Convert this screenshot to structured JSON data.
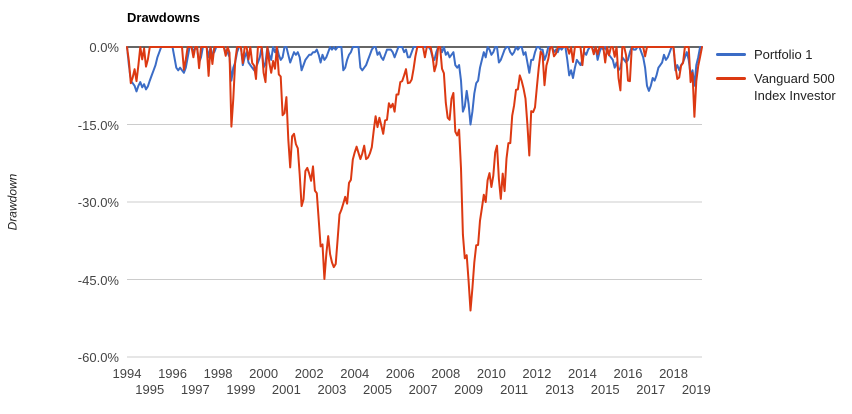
{
  "chart_data": {
    "type": "line",
    "title": "Drawdowns",
    "xlabel": "",
    "ylabel": "Drawdown",
    "x_start": "1994-01",
    "x_end": "2019-04",
    "x_frequency": "monthly",
    "ylim": [
      -60,
      0
    ],
    "y_ticks": [
      0,
      -15,
      -30,
      -45,
      -60
    ],
    "y_tick_labels": [
      "0.0%",
      "-15.0%",
      "-30.0%",
      "-45.0%",
      "-60.0%"
    ],
    "x_tick_years": [
      1994,
      1995,
      1996,
      1997,
      1998,
      1999,
      2000,
      2001,
      2002,
      2003,
      2004,
      2005,
      2006,
      2007,
      2008,
      2009,
      2010,
      2011,
      2012,
      2013,
      2014,
      2015,
      2016,
      2017,
      2018,
      2019
    ],
    "grid": "horizontal",
    "legend_position": "right",
    "series": [
      {
        "name": "Portfolio 1",
        "color": "#3B6CC6",
        "values": [
          0,
          -3.5,
          -6.5,
          -7.0,
          -7.5,
          -8.6,
          -7.5,
          -6.8,
          -7.8,
          -7.2,
          -8.2,
          -7.6,
          -6.5,
          -5.5,
          -4.5,
          -3.5,
          -2.0,
          -1.0,
          0,
          0,
          0,
          0,
          0,
          0,
          0,
          -2.0,
          -4.0,
          -4.5,
          -4.0,
          -4.5,
          -5.0,
          -4.0,
          -2.0,
          0,
          0,
          -1.0,
          0,
          -0.5,
          -3.0,
          -2.0,
          0,
          0,
          0,
          -2.0,
          0,
          -1.5,
          -1.0,
          0,
          0,
          0,
          0,
          0,
          -1.0,
          -1.0,
          -2.0,
          -6.5,
          -4.0,
          -3.0,
          -1.0,
          0,
          0,
          -3.5,
          -2.0,
          -1.0,
          -3.0,
          -3.5,
          -4.0,
          -4.5,
          -4.0,
          -3.0,
          -2.0,
          0,
          -4.0,
          -3.0,
          0,
          -1.5,
          -2.5,
          0,
          -1.0,
          0,
          -1.5,
          -2.5,
          -2.0,
          0,
          0,
          -1.5,
          -3.0,
          -2.0,
          -1.0,
          -1.5,
          -1.0,
          -2.0,
          -4.5,
          -3.5,
          -2.5,
          -2.0,
          -1.5,
          -1.5,
          -1.0,
          -1.0,
          -0.5,
          -1.5,
          -3.0,
          -1.5,
          -2.5,
          -2.0,
          -1.0,
          0,
          -0.5,
          0,
          -0.5,
          0,
          0,
          0,
          -4.5,
          -4.0,
          -2.5,
          -1.5,
          -1.0,
          0,
          0,
          0,
          0,
          -4.0,
          -4.5,
          -4.0,
          -3.5,
          -2.5,
          -1.5,
          -0.5,
          0,
          0,
          -1.5,
          -1.0,
          -2.0,
          -2.5,
          -1.5,
          -0.5,
          -0.5,
          -0.5,
          -1.0,
          -2.0,
          -1.0,
          0,
          0,
          0,
          -1.0,
          -0.5,
          -2.0,
          -2.0,
          -1.0,
          0,
          0,
          0,
          0,
          0,
          0,
          0,
          0,
          0,
          -0.5,
          -2.0,
          -2.5,
          -1.0,
          0,
          0,
          -1.0,
          0,
          -1.5,
          -1.0,
          -2.0,
          -1.5,
          -1.0,
          -3.5,
          -4.0,
          -3.5,
          -6.5,
          -12.5,
          -11.5,
          -8.5,
          -11.0,
          -15.0,
          -12.5,
          -9.0,
          -7.0,
          -6.5,
          -4.0,
          -2.5,
          -1.0,
          -2.0,
          0,
          -0.5,
          -1.5,
          -1.0,
          0,
          0,
          -3.0,
          -2.5,
          -1.5,
          -0.5,
          0,
          0,
          -1.0,
          -1.5,
          -1.0,
          0,
          -0.5,
          0,
          0,
          -1.5,
          -1.0,
          -3.0,
          -5.0,
          -2.5,
          -2.5,
          -1.0,
          0,
          0,
          -0.5,
          -0.5,
          -2.5,
          -1.5,
          0,
          0,
          0,
          -1.0,
          -0.5,
          -1.0,
          0,
          -0.5,
          0,
          0,
          -2.5,
          -5.5,
          -4.5,
          -6.0,
          -4.0,
          -2.5,
          -3.0,
          -3.5,
          -2.5,
          -1.0,
          -1.5,
          -0.5,
          0,
          0,
          -1.0,
          0,
          -2.5,
          -1.0,
          0,
          -0.5,
          0,
          -1.0,
          -1.5,
          -2.0,
          -2.5,
          -4.0,
          -3.0,
          -4.5,
          -4.0,
          -2.0,
          -2.5,
          -3.0,
          -2.5,
          -1.0,
          0,
          -0.5,
          -0.5,
          0,
          0,
          -1.0,
          -2.0,
          -4.0,
          -7.5,
          -8.5,
          -7.5,
          -6.0,
          -6.5,
          -5.5,
          -4.0,
          -3.5,
          -3.0,
          -1.5,
          -2.5,
          -2.0,
          -1.0,
          0,
          0,
          -4.5,
          -3.5,
          -4.5,
          -3.5,
          -3.0,
          -2.0,
          -1.0,
          -2.5,
          -5.5,
          -4.5,
          -7.5,
          -3.5,
          -2.0,
          0,
          0
        ]
      },
      {
        "name": "Vanguard 500 Index Investor",
        "color": "#DC3912",
        "values": [
          0,
          -2.7,
          -7.0,
          -5.9,
          -4.3,
          -6.6,
          -3.5,
          0,
          -2.4,
          -0.3,
          -3.8,
          -2.4,
          0,
          0,
          0,
          0,
          0,
          0,
          0,
          0,
          0,
          0,
          0,
          0,
          0,
          0,
          0,
          0,
          0,
          0,
          -4.4,
          -2.4,
          0,
          0,
          0,
          -2.0,
          0,
          0,
          -4.1,
          0,
          0,
          0,
          0,
          -5.6,
          0,
          -3.3,
          0,
          0,
          0,
          0,
          0,
          0,
          -1.7,
          0,
          -1.1,
          -15.4,
          -10.0,
          -2.7,
          0,
          0,
          0,
          -3.1,
          0,
          0,
          -2.4,
          0,
          -3.1,
          -3.6,
          -6.2,
          0,
          0,
          0,
          -5.0,
          -6.8,
          0,
          -3.0,
          -5.0,
          -2.7,
          -4.2,
          0,
          -5.3,
          -5.7,
          -13.2,
          -12.8,
          -9.7,
          -17.9,
          -23.3,
          -17.3,
          -16.8,
          -18.8,
          -19.6,
          -24.7,
          -30.8,
          -29.5,
          -24.0,
          -23.4,
          -24.5,
          -25.9,
          -23.1,
          -27.8,
          -28.3,
          -33.4,
          -38.6,
          -38.2,
          -44.9,
          -40.1,
          -36.6,
          -40.1,
          -41.7,
          -42.6,
          -42.0,
          -37.3,
          -32.4,
          -31.5,
          -30.3,
          -29.0,
          -30.3,
          -26.3,
          -25.7,
          -21.8,
          -20.4,
          -19.3,
          -20.5,
          -21.7,
          -20.6,
          -19.1,
          -21.7,
          -21.4,
          -20.6,
          -19.4,
          -16.2,
          -13.4,
          -15.5,
          -13.7,
          -15.2,
          -16.8,
          -14.2,
          -14.1,
          -10.9,
          -11.7,
          -11.0,
          -12.5,
          -9.2,
          -9.2,
          -6.8,
          -6.6,
          -5.5,
          -4.3,
          -7.0,
          -6.9,
          -6.3,
          -4.2,
          -1.8,
          0,
          0,
          0,
          0,
          -2.0,
          0,
          0,
          0,
          -1.7,
          -4.7,
          -3.4,
          0,
          0,
          -4.2,
          -5.1,
          -10.8,
          -13.7,
          -14.1,
          -10.0,
          -8.9,
          -16.4,
          -17.1,
          -16.0,
          -23.5,
          -36.3,
          -40.9,
          -40.3,
          -45.3,
          -51.0,
          -46.7,
          -41.7,
          -38.4,
          -38.3,
          -33.6,
          -31.2,
          -28.6,
          -30.0,
          -25.8,
          -24.4,
          -27.1,
          -24.9,
          -20.4,
          -19.1,
          -25.6,
          -29.4,
          -24.5,
          -27.9,
          -21.6,
          -18.6,
          -18.6,
          -13.3,
          -11.3,
          -8.3,
          -8.2,
          -5.5,
          -6.6,
          -8.1,
          -10.0,
          -15.0,
          -21.0,
          -12.4,
          -12.6,
          -11.7,
          -7.7,
          -3.9,
          -0.9,
          -1.5,
          -7.4,
          -3.6,
          -2.3,
          -0.1,
          0,
          -1.8,
          -1.3,
          0,
          0,
          0,
          0,
          0,
          0,
          -1.3,
          0,
          -2.9,
          0,
          0,
          0,
          0,
          -3.5,
          0,
          0,
          0,
          0,
          0,
          -1.4,
          0,
          -1.4,
          0,
          0,
          0,
          -3.0,
          0,
          -1.6,
          0,
          0,
          -1.9,
          0,
          -6.0,
          -8.4,
          0,
          0,
          -1.6,
          -6.5,
          -6.6,
          0,
          0,
          0,
          0,
          0,
          0,
          0,
          -1.8,
          0,
          0,
          0,
          0,
          0,
          0,
          0,
          0,
          0,
          0,
          0,
          0,
          0,
          0,
          0,
          -3.7,
          -6.2,
          -5.9,
          -3.6,
          -3.1,
          0,
          0,
          0,
          -6.8,
          -5.0,
          -13.5,
          -6.6,
          -3.7,
          -1.9,
          0
        ]
      }
    ]
  }
}
